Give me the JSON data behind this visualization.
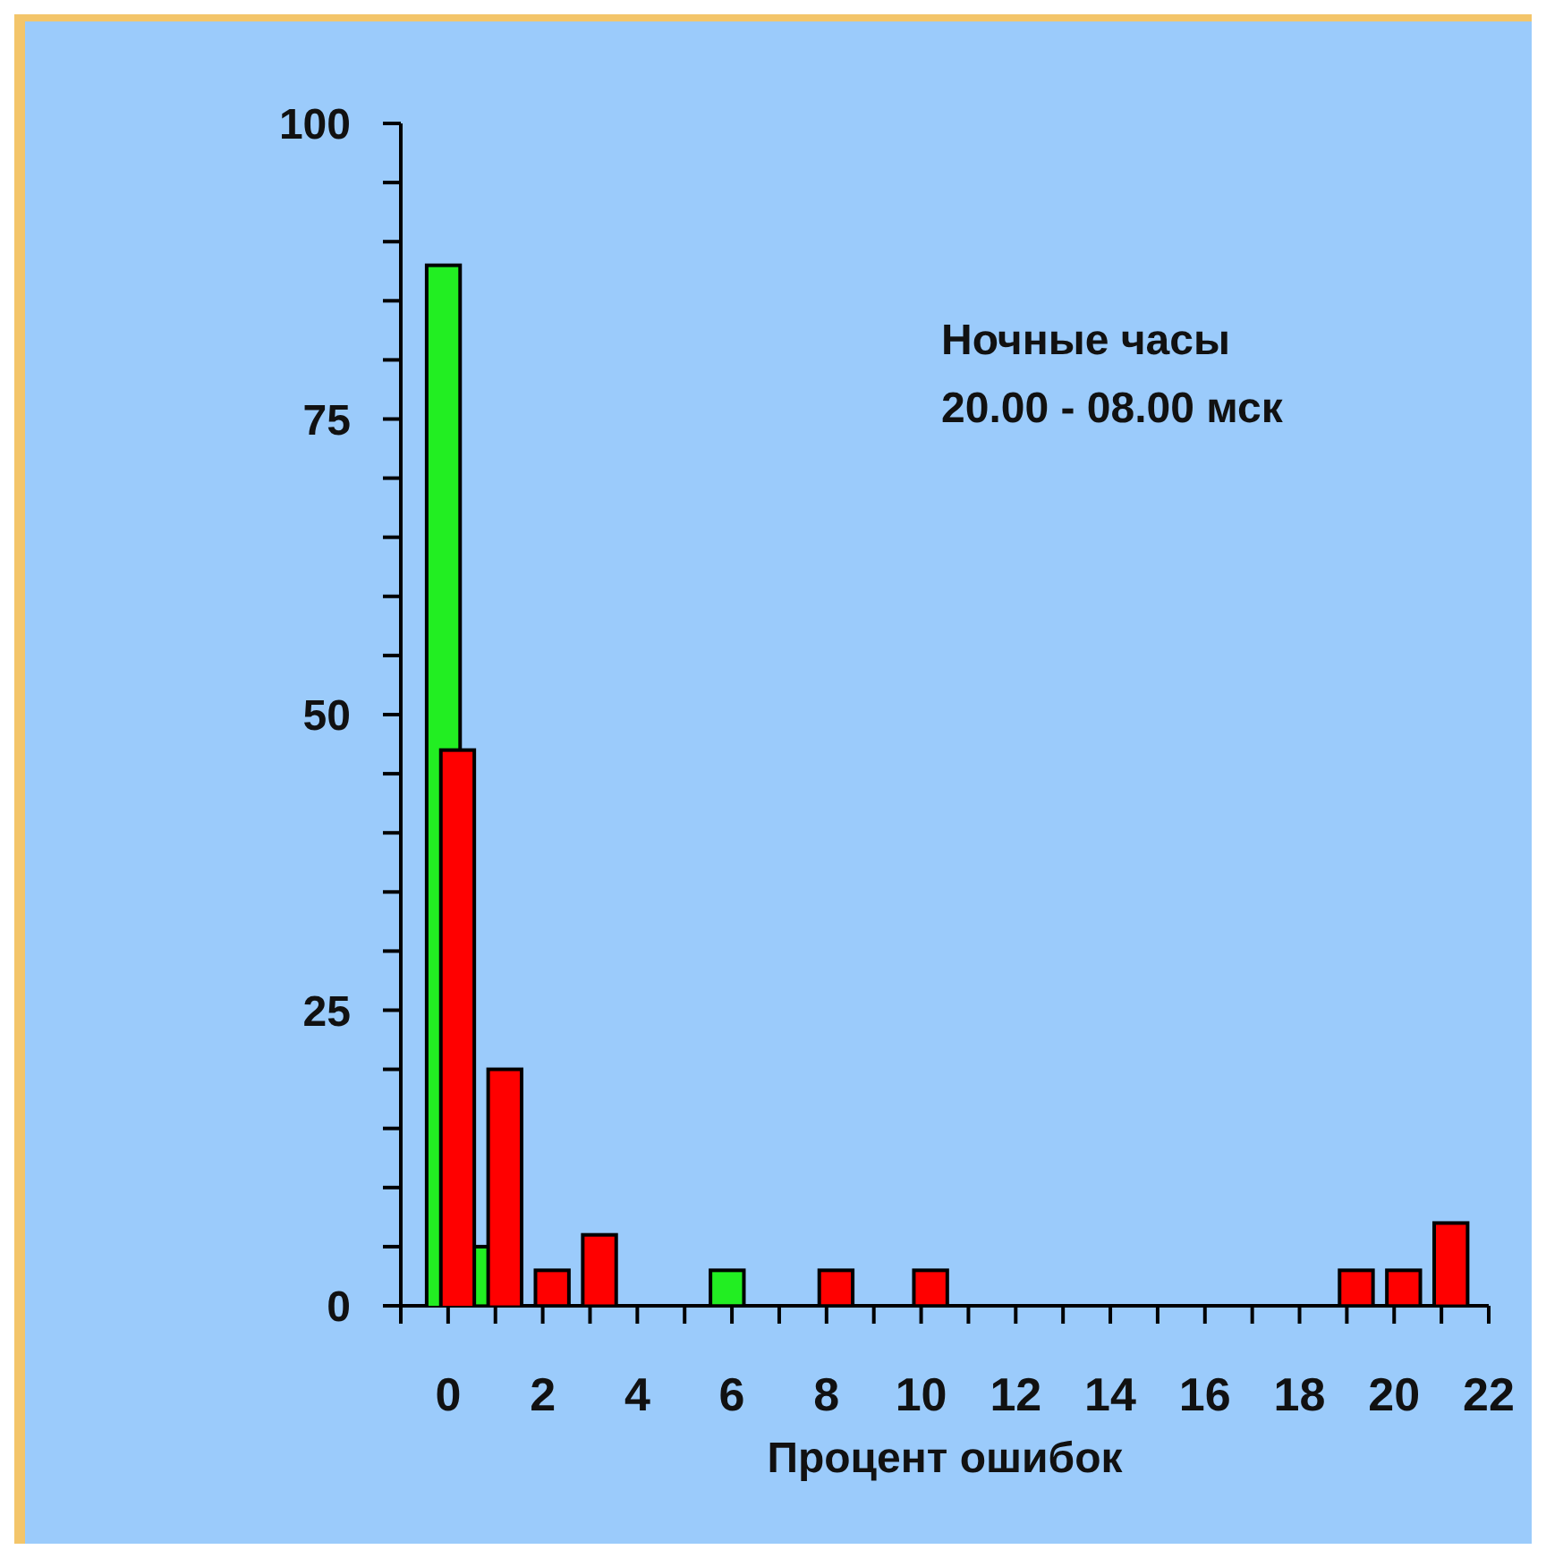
{
  "chart_data": {
    "type": "bar",
    "xlabel": "Процент ошибок",
    "annotations": [
      "Ночные часы",
      "20.00 - 08.00 мск"
    ],
    "series": [
      {
        "color": "#22ee22",
        "x": [
          -0.1,
          0.7,
          5.9
        ],
        "values": [
          88,
          5,
          3
        ]
      },
      {
        "color": "#ff0000",
        "x": [
          0.2,
          1.2,
          2.2,
          3.2,
          8.2,
          10.2,
          19.2,
          20.2,
          21.2
        ],
        "values": [
          47,
          20,
          3,
          6,
          3,
          3,
          3,
          3,
          7
        ]
      }
    ],
    "xlim": [
      -1,
      22
    ],
    "xticks": [
      {
        "value": -1,
        "label": null
      },
      0,
      {
        "value": 1,
        "label": null
      },
      2,
      {
        "value": 3,
        "label": null
      },
      4,
      {
        "value": 5,
        "label": null
      },
      6,
      {
        "value": 7,
        "label": null
      },
      8,
      {
        "value": 9,
        "label": null
      },
      10,
      {
        "value": 11,
        "label": null
      },
      12,
      {
        "value": 13,
        "label": null
      },
      14,
      {
        "value": 15,
        "label": null
      },
      16,
      {
        "value": 17,
        "label": null
      },
      18,
      {
        "value": 19,
        "label": null
      },
      20,
      {
        "value": 21,
        "label": null
      },
      22
    ],
    "ylim": [
      0,
      100
    ],
    "yticks": [
      0,
      {
        "value": 5,
        "label": null
      },
      {
        "value": 10,
        "label": null
      },
      {
        "value": 15,
        "label": null
      },
      {
        "value": 20,
        "label": null
      },
      25,
      {
        "value": 30,
        "label": null
      },
      {
        "value": 35,
        "label": null
      },
      {
        "value": 40,
        "label": null
      },
      {
        "value": 45,
        "label": null
      },
      50,
      {
        "value": 55,
        "label": null
      },
      {
        "value": 60,
        "label": null
      },
      {
        "value": 65,
        "label": null
      },
      {
        "value": 70,
        "label": null
      },
      75,
      {
        "value": 80,
        "label": null
      },
      {
        "value": 85,
        "label": null
      },
      {
        "value": 90,
        "label": null
      },
      {
        "value": 95,
        "label": null
      },
      100
    ],
    "grid": false,
    "legend": false
  }
}
